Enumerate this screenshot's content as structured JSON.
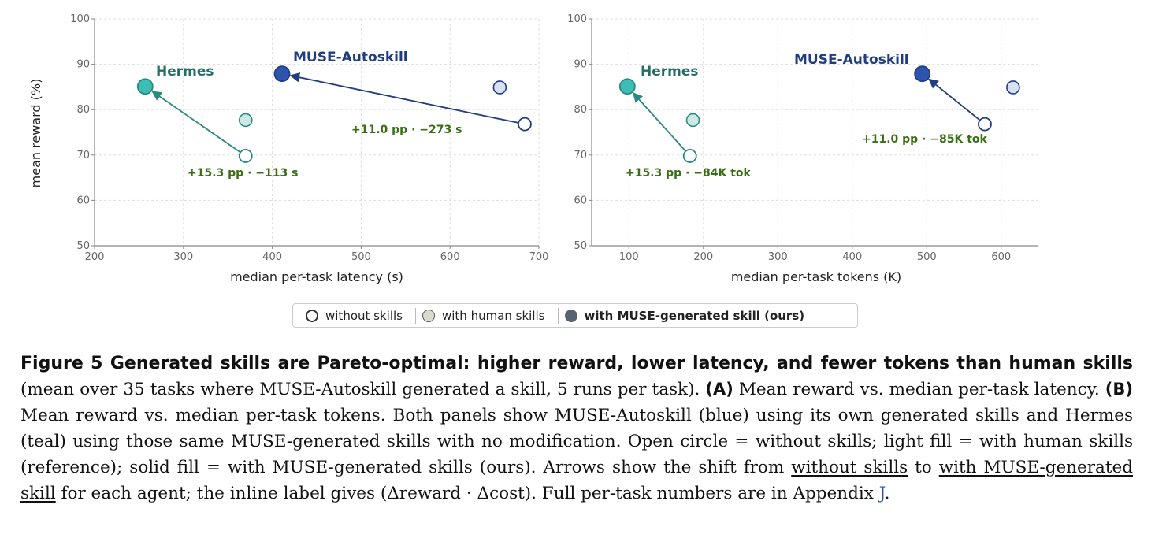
{
  "chart_data": [
    {
      "type": "scatter",
      "panel": "A",
      "xlabel": "median per-task latency (s)",
      "ylabel": "mean reward (%)",
      "xlim": [
        200,
        700
      ],
      "ylim": [
        50,
        100
      ],
      "xticks": [
        200,
        300,
        400,
        500,
        600,
        700
      ],
      "yticks": [
        50,
        60,
        70,
        80,
        90,
        100
      ],
      "grid": true,
      "agents": [
        {
          "name": "Hermes",
          "color": "#2b8a80",
          "fill_solid": "#3ebdb5",
          "fill_light": "#cde9e6",
          "without_skills": {
            "x": 370,
            "y": 69.8
          },
          "with_human_skills": {
            "x": 370,
            "y": 77.7
          },
          "with_muse_skill": {
            "x": 257,
            "y": 85.1
          },
          "delta_label": "+15.3 pp · −113 s"
        },
        {
          "name": "MUSE-Autoskill",
          "color": "#1f3d80",
          "fill_solid": "#2d55b0",
          "fill_light": "#d7e1f1",
          "without_skills": {
            "x": 684,
            "y": 76.8
          },
          "with_human_skills": {
            "x": 656,
            "y": 84.9
          },
          "with_muse_skill": {
            "x": 411,
            "y": 87.9
          },
          "delta_label": "+11.0 pp · −273 s"
        }
      ]
    },
    {
      "type": "scatter",
      "panel": "B",
      "xlabel": "median per-task tokens (K)",
      "ylabel": "",
      "xlim": [
        50,
        650
      ],
      "ylim": [
        50,
        100
      ],
      "xticks": [
        100,
        200,
        300,
        400,
        500,
        600
      ],
      "yticks": [
        50,
        60,
        70,
        80,
        90,
        100
      ],
      "grid": true,
      "agents": [
        {
          "name": "Hermes",
          "color": "#2b8a80",
          "fill_solid": "#3ebdb5",
          "fill_light": "#cde9e6",
          "without_skills": {
            "x": 182,
            "y": 69.8
          },
          "with_human_skills": {
            "x": 186,
            "y": 77.7
          },
          "with_muse_skill": {
            "x": 98,
            "y": 85.1
          },
          "delta_label": "+15.3 pp · −84K tok"
        },
        {
          "name": "MUSE-Autoskill",
          "color": "#1f3d80",
          "fill_solid": "#2d55b0",
          "fill_light": "#d7e1f1",
          "without_skills": {
            "x": 578,
            "y": 76.8
          },
          "with_human_skills": {
            "x": 616,
            "y": 84.9
          },
          "with_muse_skill": {
            "x": 494,
            "y": 87.9
          },
          "delta_label": "+11.0 pp · −85K tok"
        }
      ]
    }
  ],
  "legend": {
    "without_skills": "without skills",
    "with_human_skills": "with human skills",
    "with_muse_skill": "with MUSE-generated skill (ours)"
  },
  "caption": {
    "title": "Figure 5  Generated skills are Pareto-optimal: higher reward, lower latency, and fewer tokens than human skills",
    "part1": " (mean over 35 tasks where MUSE-Autoskill generated a skill, 5 runs per task). ",
    "panel_a": "(A)",
    "part2": " Mean reward vs. median per-task latency. ",
    "panel_b": "(B)",
    "part3": " Mean reward vs. median per-task tokens. Both panels show MUSE-Autoskill (blue) using its own generated skills and Hermes (teal) using those same MUSE-generated skills with no modification. Open circle = without skills; light fill = with human skills (reference); solid fill = with MUSE-generated skills (ours). Arrows show the shift from ",
    "ul1": "without skills",
    "part4": " to ",
    "ul2": "with MUSE-generated skill",
    "part5": " for each agent; the inline label gives (Δreward · Δcost). Full per-task numbers are in Appendix ",
    "appendix_link": "J",
    "part6": "."
  }
}
